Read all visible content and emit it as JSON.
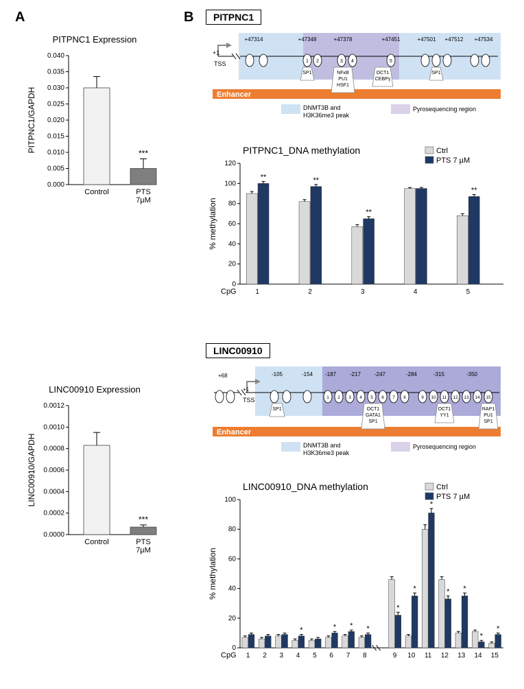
{
  "letters": {
    "A": "A",
    "B": "B"
  },
  "panelA": {
    "pitpnc1": {
      "title": "PITPNC1 Expression",
      "ylabel": "PITPNC1/GAPDH",
      "ylim": [
        0,
        0.04
      ],
      "ytick_step": 0.005,
      "categories": [
        "Control",
        "PTS\n7µM"
      ],
      "values": [
        0.03,
        0.005
      ],
      "errs": [
        0.0035,
        0.003
      ],
      "colors": [
        "#f2f2f2",
        "#7f7f7f"
      ],
      "sig": "***"
    },
    "linc": {
      "title": "LINC00910 Expression",
      "ylabel": "LINC00910/GAPDH",
      "ylim": [
        0,
        0.0012
      ],
      "ytick_step": 0.0002,
      "categories": [
        "Control",
        "PTS\n7µM"
      ],
      "values": [
        0.00083,
        7e-05
      ],
      "errs": [
        0.00012,
        2e-05
      ],
      "colors": [
        "#f2f2f2",
        "#7f7f7f"
      ],
      "sig": "***"
    }
  },
  "panelB": {
    "pitpnc1": {
      "name": "PITPNC1",
      "diagram": {
        "tss_label": "TSS",
        "plus1": "+1",
        "positions": [
          "+47314",
          "+47348",
          "+47378",
          "+47451",
          "+47501",
          "+47512",
          "+47534"
        ],
        "numbered": [
          "1",
          "2",
          "3",
          "4",
          "5"
        ],
        "tf": [
          {
            "label": "SP1"
          },
          {
            "label": "NFκB\nPU1\nHSF1"
          },
          {
            "label": "OCT1\nCEBPγ"
          },
          {
            "label": "SP1"
          }
        ],
        "enhancer": "Enhancer",
        "legend1": "DNMT3B and\nH3K36me3 peak",
        "legend2": "Pyrosequencing region"
      },
      "chart": {
        "title": "PITPNC1_DNA methylation",
        "ylabel": "% methylation",
        "ylim": [
          0,
          120
        ],
        "ytick_step": 20,
        "categories": [
          "1",
          "2",
          "3",
          "4",
          "5"
        ],
        "xprefix": "CpG",
        "series": [
          {
            "name": "Ctrl",
            "color": "#d9d9d9",
            "values": [
              90,
              82,
              57,
              95,
              68
            ],
            "errs": [
              2,
              2,
              2,
              1,
              2
            ]
          },
          {
            "name": "PTS 7 µM",
            "color": "#1f3864",
            "values": [
              100,
              97,
              65,
              95,
              87
            ],
            "errs": [
              2,
              2,
              2,
              1,
              2
            ]
          }
        ],
        "sig": [
          "**",
          "**",
          "**",
          "",
          "**"
        ]
      }
    },
    "linc": {
      "name": "LINC00910",
      "diagram": {
        "tss_label": "TSS",
        "plus1": "+1",
        "plus68": "+68",
        "positions": [
          "-105",
          "-154",
          "-187",
          "-217",
          "-247",
          "-284",
          "-315",
          "-350"
        ],
        "numbered": [
          "1",
          "2",
          "3",
          "4",
          "5",
          "6",
          "7",
          "8",
          "9",
          "10",
          "11",
          "12",
          "13",
          "14",
          "15"
        ],
        "tf": [
          {
            "label": "SP1"
          },
          {
            "label": "OCT1\nGATA1\nSP1"
          },
          {
            "label": "OCT1\nYY1"
          },
          {
            "label": "RAP1\nPU1\nSP1"
          }
        ],
        "enhancer": "Enhancer",
        "legend1": "DNMT3B and\nH3K36me3 peak",
        "legend2": "Pyrosequencing region"
      },
      "chart": {
        "title": "LINC00910_DNA methylation",
        "ylabel": "% methylation",
        "ylim": [
          0,
          100
        ],
        "ytick_step": 20,
        "xprefix": "CpG",
        "categories": [
          "1",
          "2",
          "3",
          "4",
          "5",
          "6",
          "7",
          "8",
          "9",
          "10",
          "11",
          "12",
          "13",
          "14",
          "15"
        ],
        "break_after": 8,
        "series": [
          {
            "name": "Ctrl",
            "color": "#d9d9d9",
            "values": [
              7,
              6,
              8,
              5,
              5,
              7,
              8,
              7,
              46,
              8,
              80,
              46,
              10,
              11,
              3
            ],
            "errs": [
              1,
              1,
              1,
              1,
              1,
              1,
              1,
              1,
              2,
              1,
              3,
              2,
              1,
              1,
              1
            ]
          },
          {
            "name": "PTS 7 µM",
            "color": "#1f3864",
            "values": [
              9,
              8,
              9,
              8,
              6,
              10,
              11,
              9,
              22,
              35,
              91,
              33,
              35,
              4,
              9
            ],
            "errs": [
              1,
              1,
              1,
              1,
              1,
              1,
              1,
              1,
              2,
              2,
              3,
              2,
              2,
              1,
              1
            ]
          }
        ],
        "sig": [
          "",
          "",
          "",
          "*",
          "",
          "*",
          "*",
          "*",
          "*",
          "*",
          "*",
          "*",
          "*",
          "*",
          "*"
        ]
      }
    }
  }
}
